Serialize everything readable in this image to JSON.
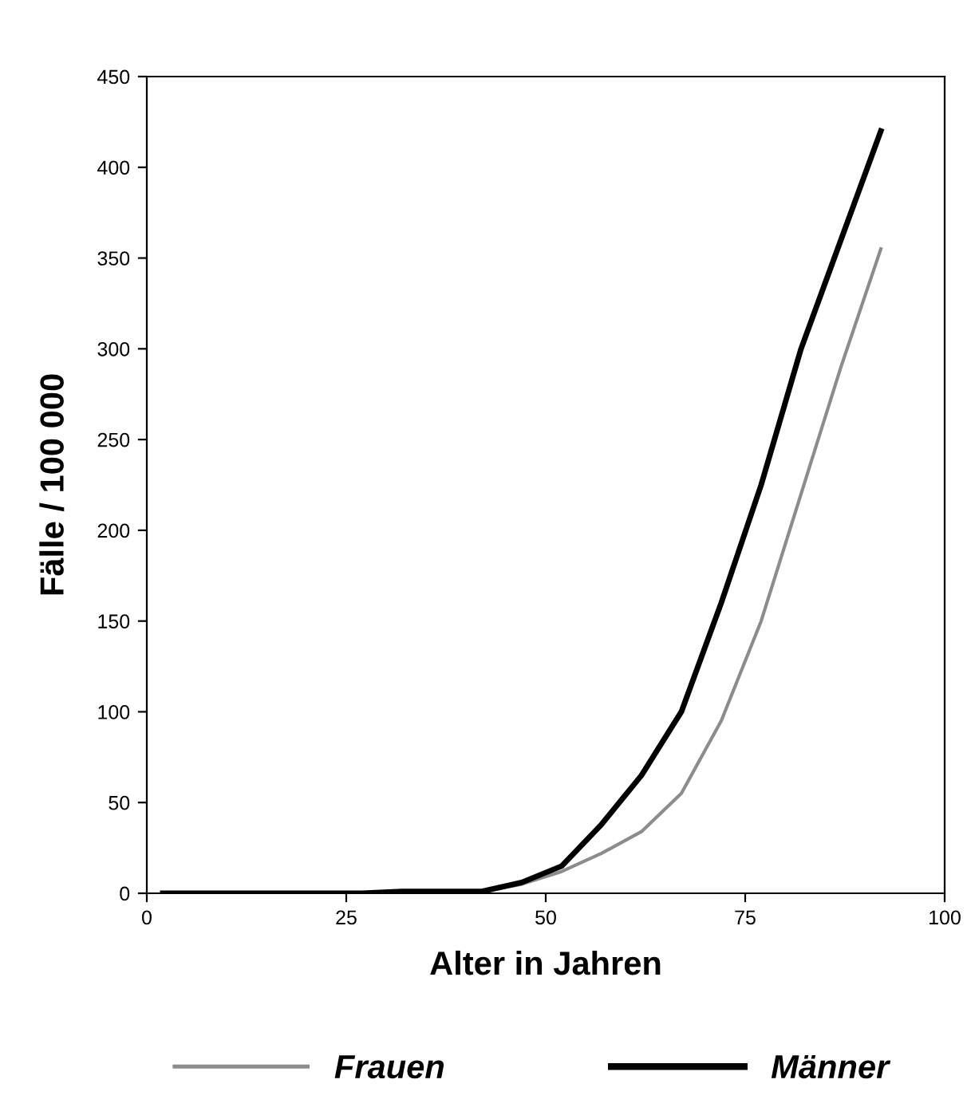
{
  "chart_data": {
    "type": "line",
    "xlabel": "Alter in Jahren",
    "ylabel": "Fälle / 100 000",
    "x": [
      2,
      7,
      12,
      17,
      22,
      27,
      32,
      37,
      42,
      47,
      52,
      57,
      62,
      67,
      72,
      77,
      82,
      87,
      92
    ],
    "series": [
      {
        "name": "Frauen",
        "color": "#8c8c8c",
        "values": [
          0,
          0,
          0,
          0,
          0,
          0,
          0,
          0,
          1,
          5,
          12,
          22,
          34,
          55,
          95,
          150,
          220,
          290,
          355
        ]
      },
      {
        "name": "Männer",
        "color": "#000000",
        "values": [
          0,
          0,
          0,
          0,
          0,
          0,
          1,
          1,
          1,
          6,
          15,
          38,
          65,
          100,
          160,
          225,
          300,
          360,
          420
        ]
      }
    ],
    "xlim": [
      0,
      100
    ],
    "xticks": [
      0,
      25,
      50,
      75,
      100
    ],
    "ylim": [
      0,
      450
    ],
    "yticks": [
      0,
      50,
      100,
      150,
      200,
      250,
      300,
      350,
      400,
      450
    ],
    "grid": false,
    "legend": "bottom",
    "marker": "none",
    "line_style": "solid"
  }
}
